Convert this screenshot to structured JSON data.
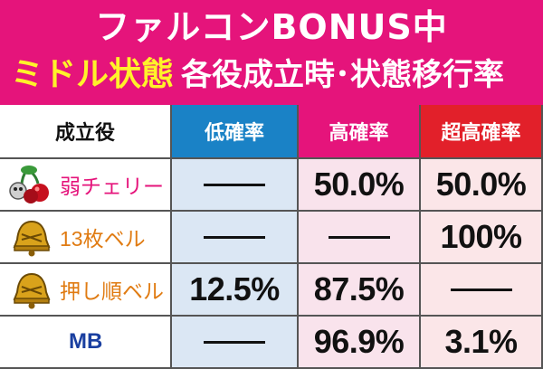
{
  "header": {
    "title": "ファルコンBONUS中",
    "subtitle_left": "ミドル状態",
    "subtitle_right": "各役成立時･状態移行率"
  },
  "table": {
    "columns": [
      "成立役",
      "低確率",
      "高確率",
      "超高確率"
    ],
    "rows": [
      {
        "role": "弱チェリー",
        "icon": "cherry-icon",
        "values": [
          "——",
          "50.0%",
          "50.0%"
        ]
      },
      {
        "role": "13枚ベル",
        "icon": "bell-icon",
        "values": [
          "——",
          "——",
          "100%"
        ]
      },
      {
        "role": "押し順ベル",
        "icon": "bell-icon",
        "values": [
          "12.5%",
          "87.5%",
          "——"
        ]
      },
      {
        "role": "MB",
        "icon": "",
        "values": [
          "——",
          "96.9%",
          "3.1%"
        ]
      }
    ]
  },
  "colors": {
    "header_bg": "#e5147b",
    "subtitle_left": "#fff22a",
    "low": "#1a82c6",
    "high": "#e5147b",
    "super_high": "#e2202a"
  }
}
